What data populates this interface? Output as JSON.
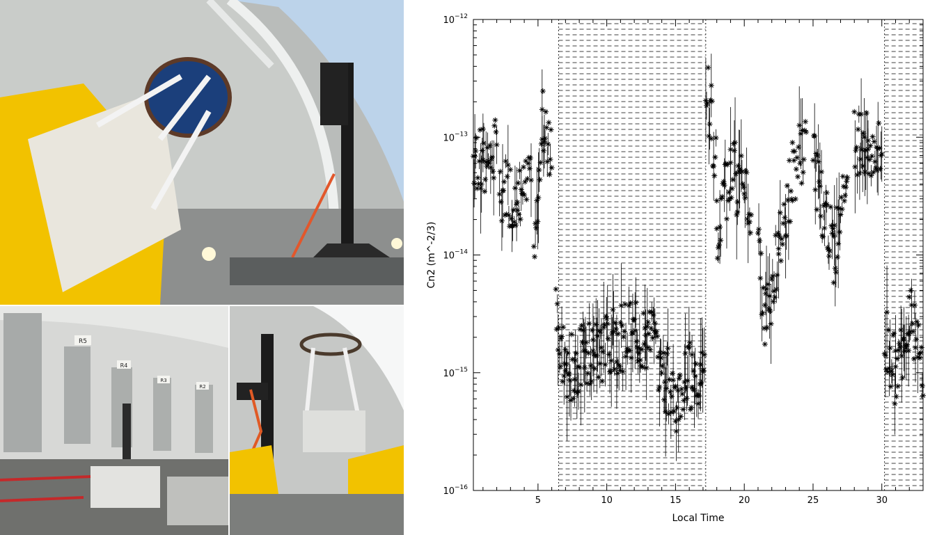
{
  "photos": [
    {
      "name": "telescope-dome-top-photo"
    },
    {
      "name": "dome-windows-photo",
      "window_labels": [
        "R5",
        "R4",
        "R3",
        "R2"
      ]
    },
    {
      "name": "telescope-mount-photo"
    }
  ],
  "colors": {
    "dome": "#c9ccc9",
    "telescope": "#f2c200",
    "sky": "#bcd3ea",
    "marker": "#000000"
  },
  "chart_data": {
    "type": "scatter",
    "title": "",
    "xlabel": "Local Time",
    "ylabel": "Cn2 (m^-2/3)",
    "xlim": [
      0.3,
      33
    ],
    "ylim": [
      1e-16,
      1e-12
    ],
    "yscale": "log",
    "x_ticks": [
      5,
      10,
      15,
      20,
      25,
      30
    ],
    "y_ticks": [
      {
        "value": 1e-16,
        "mantissa": "10",
        "exp": "−16"
      },
      {
        "value": 1e-15,
        "mantissa": "10",
        "exp": "−15"
      },
      {
        "value": 1e-14,
        "mantissa": "10",
        "exp": "−14"
      },
      {
        "value": 1e-13,
        "mantissa": "10",
        "exp": "−13"
      },
      {
        "value": 1e-12,
        "mantissa": "10",
        "exp": "−12"
      }
    ],
    "marker": "asterisk",
    "shaded_regions": [
      [
        6.5,
        17.2
      ],
      [
        30.2,
        33
      ]
    ],
    "segments": [
      {
        "x": [
          0.3,
          1.0,
          2.0
        ],
        "y": [
          7e-14,
          6e-14,
          8e-14
        ]
      },
      {
        "x": [
          2.2,
          3.5,
          4.5
        ],
        "y": [
          4e-14,
          3e-14,
          3.5e-14
        ]
      },
      {
        "x": [
          4.7,
          5.3,
          6.0
        ],
        "y": [
          8e-15,
          1.5e-13,
          8e-14
        ]
      },
      {
        "x": [
          6.3,
          7.0,
          9.0,
          11.0,
          13.0,
          15.0,
          16.2,
          17.1
        ],
        "y": [
          3e-15,
          1e-15,
          1.5e-15,
          2e-15,
          2e-15,
          6e-16,
          1e-15,
          8e-16
        ]
      },
      {
        "x": [
          17.2,
          17.6,
          18.0
        ],
        "y": [
          3e-13,
          1.5e-13,
          5e-14
        ]
      },
      {
        "x": [
          18.0,
          19.0,
          19.5,
          20.5
        ],
        "y": [
          1e-14,
          6e-14,
          4e-14,
          3e-14
        ]
      },
      {
        "x": [
          21.0,
          21.5,
          22.5,
          23.5,
          24.5
        ],
        "y": [
          1e-14,
          3e-15,
          1e-14,
          5e-14,
          1e-13
        ]
      },
      {
        "x": [
          25.0,
          26.0,
          26.5,
          27.5
        ],
        "y": [
          6e-14,
          2e-14,
          1e-14,
          5e-14
        ]
      },
      {
        "x": [
          28.0,
          29.0,
          30.0
        ],
        "y": [
          1e-13,
          8e-14,
          7e-14
        ]
      },
      {
        "x": [
          30.2,
          31.0,
          32.0,
          33.0
        ],
        "y": [
          2e-15,
          1e-15,
          3e-15,
          1e-15
        ]
      }
    ]
  }
}
